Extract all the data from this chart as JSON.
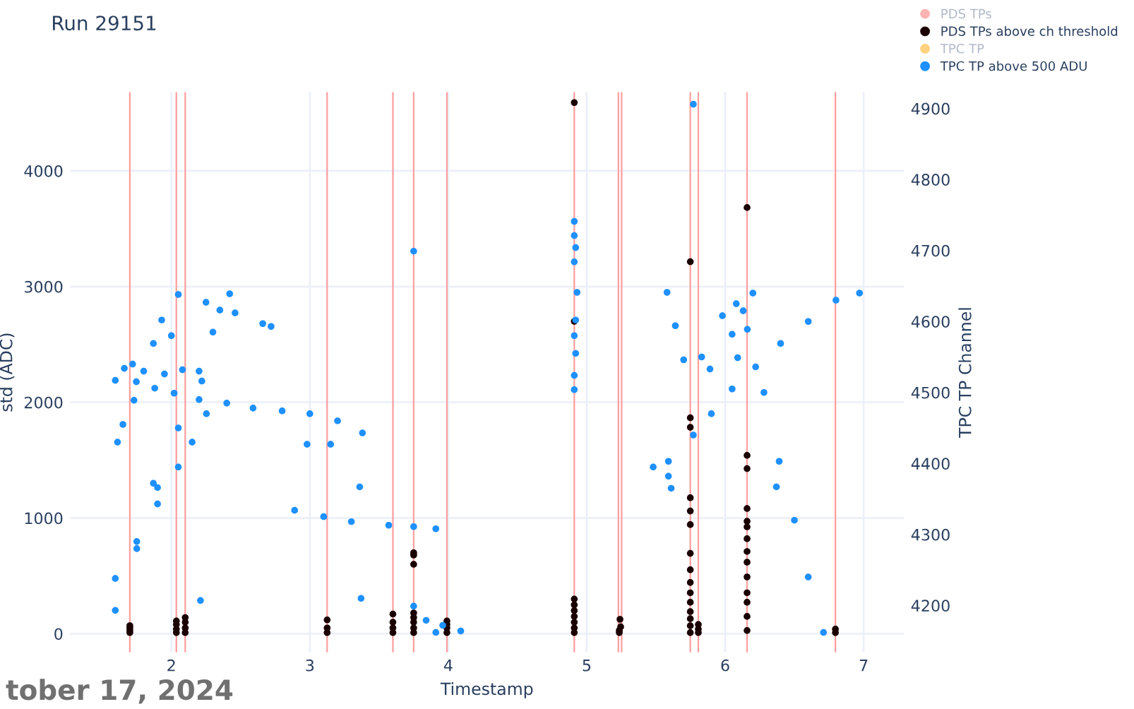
{
  "chart_data": {
    "type": "scatter",
    "title": "Run 29151",
    "xlabel": "Timestamp",
    "ylabel": "std (ADC)",
    "y2label": "TPC TP Channel",
    "annotations": [
      "tober 17, 2024"
    ],
    "xlim": [
      1.27,
      7.29
    ],
    "xticks": [
      2,
      3,
      4,
      5,
      6,
      7
    ],
    "ylim": [
      -160,
      4680
    ],
    "yticks": [
      0,
      1000,
      2000,
      3000,
      4000
    ],
    "y2lim": [
      4134,
      4923
    ],
    "y2ticks": [
      4200,
      4300,
      4400,
      4500,
      4600,
      4700,
      4800,
      4900
    ],
    "grid": true,
    "legend": "top right",
    "marker": "circle",
    "ref_lines": [
      {
        "axis": "x",
        "value": 1.7,
        "color": "#ff9e9e"
      },
      {
        "axis": "x",
        "value": 2.036,
        "color": "#ff9e9e"
      },
      {
        "axis": "x",
        "value": 2.1,
        "color": "#ff9e9e"
      },
      {
        "axis": "x",
        "value": 3.125,
        "color": "#ff9e9e"
      },
      {
        "axis": "x",
        "value": 3.6,
        "color": "#ff9e9e"
      },
      {
        "axis": "x",
        "value": 3.75,
        "color": "#ff9e9e"
      },
      {
        "axis": "x",
        "value": 3.99,
        "color": "#ff9e9e"
      },
      {
        "axis": "x",
        "value": 4.91,
        "color": "#ff9e9e"
      },
      {
        "axis": "x",
        "value": 5.229,
        "color": "#ff9e9e"
      },
      {
        "axis": "x",
        "value": 5.252,
        "color": "#ff9e9e"
      },
      {
        "axis": "x",
        "value": 5.748,
        "color": "#ff9e9e"
      },
      {
        "axis": "x",
        "value": 5.806,
        "color": "#ff9e9e"
      },
      {
        "axis": "x",
        "value": 6.158,
        "color": "#ff9e9e"
      },
      {
        "axis": "x",
        "value": 6.796,
        "color": "#ff9e9e"
      }
    ],
    "series": [
      {
        "name": "PDS TPs",
        "color": "#ffb3b3"
      },
      {
        "name": "PDS TPs above ch threshold",
        "color": "#1a0000",
        "x": [
          1.7,
          1.7,
          1.7,
          1.7,
          2.036,
          2.036,
          2.036,
          2.036,
          2.1,
          2.1,
          2.1,
          2.1,
          3.125,
          3.125,
          3.125,
          3.6,
          3.6,
          3.6,
          3.6,
          3.75,
          3.75,
          3.75,
          3.75,
          3.75,
          3.75,
          3.75,
          3.75,
          3.99,
          3.99,
          3.99,
          3.99,
          4.91,
          4.91,
          4.91,
          4.91,
          4.91,
          4.91,
          4.91,
          4.91,
          4.91,
          5.235,
          5.235,
          5.245,
          5.24,
          5.748,
          5.748,
          5.748,
          5.748,
          5.748,
          5.748,
          5.748,
          5.748,
          5.748,
          5.748,
          5.748,
          5.748,
          5.748,
          5.748,
          5.748,
          5.806,
          5.806,
          5.806,
          6.158,
          6.158,
          6.158,
          6.158,
          6.158,
          6.158,
          6.158,
          6.158,
          6.158,
          6.158,
          6.158,
          6.158,
          6.158,
          6.158,
          6.796,
          6.796
        ],
        "values": [
          10,
          30,
          50,
          70,
          10,
          40,
          80,
          110,
          10,
          50,
          100,
          140,
          10,
          50,
          120,
          10,
          50,
          100,
          170,
          10,
          50,
          100,
          140,
          180,
          600,
          680,
          700,
          10,
          50,
          80,
          110,
          10,
          50,
          100,
          150,
          200,
          250,
          300,
          2700,
          4590,
          10,
          30,
          60,
          125,
          3215,
          1866,
          1784,
          1175,
          1061,
          943,
          695,
          553,
          443,
          354,
          272,
          191,
          69,
          130,
          10,
          10,
          40,
          80,
          3683,
          1541,
          1427,
          1082,
          972,
          923,
          821,
          711,
          618,
          491,
          354,
          272,
          150,
          28,
          10,
          40
        ]
      },
      {
        "name": "TPC TP",
        "color": "#ffd27f"
      },
      {
        "name": "TPC TP above 500 ADU",
        "color": "#1e90ff",
        "axis": "y2",
        "x": [
          1.595,
          1.75,
          1.9,
          2.05,
          2.2,
          2.3,
          2.421,
          1.595,
          1.75,
          1.9,
          2.05,
          2.15,
          2.253,
          1.611,
          1.65,
          1.73,
          1.595,
          1.66,
          1.72,
          1.747,
          1.8,
          1.88,
          1.87,
          1.87,
          1.95,
          2.0,
          2.05,
          1.93,
          2.02,
          2.2,
          2.4,
          2.59,
          2.8,
          3.0,
          3.2,
          3.38,
          2.08,
          2.22,
          2.25,
          2.35,
          2.46,
          2.66,
          2.72,
          2.89,
          3.1,
          3.3,
          3.57,
          3.75,
          3.91,
          2.21,
          2.98,
          3.15,
          3.36,
          3.37,
          3.75,
          3.75,
          3.84,
          3.91,
          3.96,
          4.09,
          4.91,
          4.91,
          4.92,
          4.91,
          4.93,
          4.92,
          4.91,
          4.92,
          4.91,
          4.91,
          5.58,
          5.64,
          5.7,
          5.77,
          5.83,
          5.98,
          6.08,
          6.2,
          5.77,
          5.9,
          6.05,
          6.22,
          6.4,
          6.6,
          6.8,
          6.97,
          6.16,
          6.28,
          6.39,
          6.5,
          6.6,
          6.71,
          5.48,
          5.59,
          5.59,
          5.61,
          5.89,
          6.05,
          6.09,
          6.13,
          6.37
        ],
        "values": [
          4193,
          4280,
          4366,
          4450,
          4530,
          4585,
          4639,
          4238,
          4290,
          4343,
          4395,
          4430,
          4470,
          4430,
          4455,
          4489,
          4517,
          4534,
          4540,
          4515,
          4530,
          4506,
          4569,
          4372,
          4526,
          4580,
          4638,
          4602,
          4499,
          4490,
          4485,
          4478,
          4474,
          4470,
          4460,
          4443,
          4532,
          4516,
          4627,
          4616,
          4612,
          4597,
          4593,
          4334,
          4325,
          4318,
          4313,
          4311,
          4308,
          4207,
          4427,
          4427,
          4367,
          4210,
          4699,
          4199,
          4179,
          4162,
          4172,
          4164,
          4741,
          4721,
          4704,
          4684,
          4641,
          4602,
          4580,
          4555,
          4524,
          4504,
          4641,
          4594,
          4546,
          4906,
          4550,
          4608,
          4625,
          4640,
          4440,
          4470,
          4505,
          4536,
          4569,
          4600,
          4630,
          4640,
          4589,
          4500,
          4403,
          4320,
          4240,
          4162,
          4395,
          4403,
          4382,
          4365,
          4533,
          4582,
          4549,
          4615,
          4367
        ]
      }
    ]
  }
}
